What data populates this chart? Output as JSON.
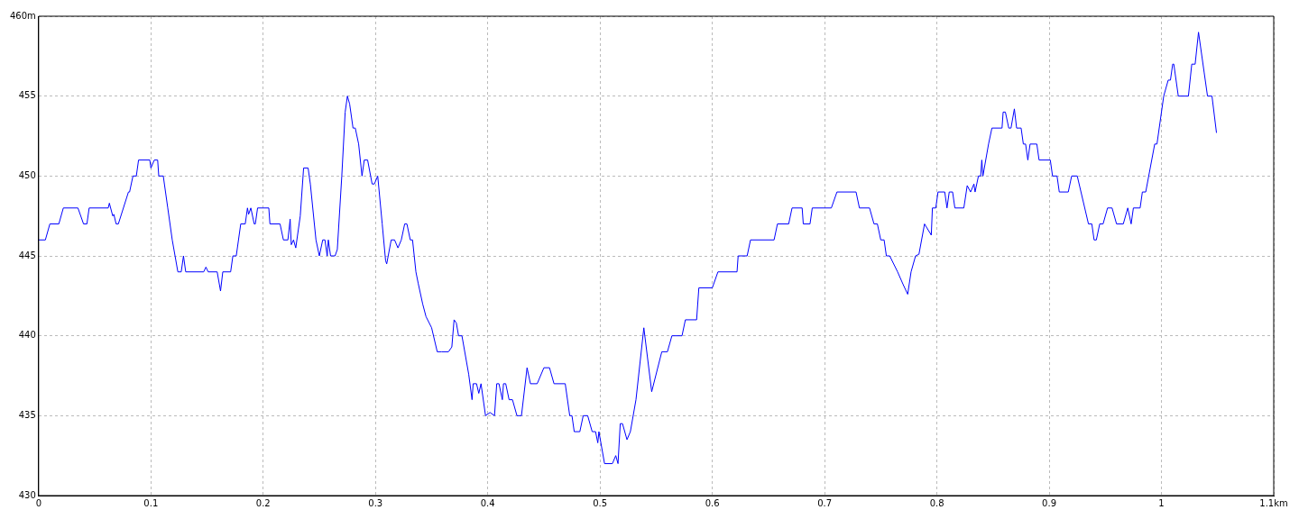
{
  "chart_data": {
    "type": "line",
    "color": "#0000ff",
    "marker": "none",
    "line_style": "solid",
    "grid": true,
    "xlim": [
      0,
      1.1
    ],
    "ylim": [
      430,
      460
    ],
    "xticks": [
      0,
      0.1,
      0.2,
      0.3,
      0.4,
      0.5,
      0.6,
      0.7,
      0.8,
      0.9,
      1,
      {
        "value": 1.1,
        "label": "1.1km"
      }
    ],
    "yticks": [
      430,
      435,
      440,
      445,
      450,
      455,
      {
        "value": 460,
        "label": "460m"
      }
    ],
    "x": [
      0,
      0.006,
      0.01,
      0.018,
      0.022,
      0.035,
      0.04,
      0.043,
      0.045,
      0.062,
      0.063,
      0.066,
      0.067,
      0.069,
      0.071,
      0.08,
      0.081,
      0.084,
      0.087,
      0.089,
      0.099,
      0.1,
      0.103,
      0.106,
      0.107,
      0.111,
      0.115,
      0.119,
      0.124,
      0.127,
      0.129,
      0.131,
      0.147,
      0.149,
      0.151,
      0.159,
      0.162,
      0.164,
      0.171,
      0.173,
      0.176,
      0.18,
      0.184,
      0.186,
      0.187,
      0.189,
      0.192,
      0.193,
      0.195,
      0.205,
      0.206,
      0.215,
      0.218,
      0.222,
      0.224,
      0.225,
      0.227,
      0.229,
      0.233,
      0.236,
      0.24,
      0.242,
      0.247,
      0.25,
      0.253,
      0.255,
      0.257,
      0.258,
      0.26,
      0.264,
      0.266,
      0.27,
      0.273,
      0.275,
      0.277,
      0.28,
      0.282,
      0.285,
      0.288,
      0.29,
      0.293,
      0.297,
      0.299,
      0.302,
      0.306,
      0.309,
      0.31,
      0.314,
      0.317,
      0.32,
      0.323,
      0.326,
      0.328,
      0.331,
      0.333,
      0.336,
      0.338,
      0.342,
      0.345,
      0.35,
      0.355,
      0.359,
      0.365,
      0.368,
      0.37,
      0.372,
      0.374,
      0.377,
      0.383,
      0.386,
      0.387,
      0.39,
      0.392,
      0.394,
      0.398,
      0.402,
      0.406,
      0.408,
      0.41,
      0.413,
      0.414,
      0.416,
      0.419,
      0.422,
      0.426,
      0.43,
      0.435,
      0.438,
      0.444,
      0.45,
      0.455,
      0.459,
      0.469,
      0.473,
      0.475,
      0.477,
      0.482,
      0.485,
      0.489,
      0.493,
      0.496,
      0.498,
      0.499,
      0.504,
      0.511,
      0.514,
      0.516,
      0.518,
      0.52,
      0.524,
      0.527,
      0.532,
      0.539,
      0.546,
      0.555,
      0.56,
      0.564,
      0.573,
      0.576,
      0.586,
      0.588,
      0.6,
      0.605,
      0.622,
      0.623,
      0.631,
      0.634,
      0.655,
      0.658,
      0.668,
      0.671,
      0.68,
      0.681,
      0.687,
      0.689,
      0.706,
      0.711,
      0.728,
      0.731,
      0.74,
      0.744,
      0.747,
      0.75,
      0.753,
      0.755,
      0.758,
      0.765,
      0.77,
      0.774,
      0.777,
      0.781,
      0.784,
      0.789,
      0.795,
      0.796,
      0.799,
      0.801,
      0.807,
      0.809,
      0.811,
      0.814,
      0.816,
      0.824,
      0.827,
      0.83,
      0.833,
      0.834,
      0.837,
      0.839,
      0.84,
      0.841,
      0.846,
      0.849,
      0.858,
      0.859,
      0.861,
      0.864,
      0.866,
      0.869,
      0.871,
      0.875,
      0.877,
      0.879,
      0.881,
      0.883,
      0.889,
      0.891,
      0.901,
      0.903,
      0.907,
      0.909,
      0.917,
      0.92,
      0.925,
      0.935,
      0.938,
      0.94,
      0.942,
      0.945,
      0.948,
      0.952,
      0.956,
      0.96,
      0.966,
      0.97,
      0.973,
      0.975,
      0.981,
      0.983,
      0.986,
      0.994,
      0.996,
      1.002,
      1.006,
      1.008,
      1.01,
      1.011,
      1.015,
      1.024,
      1.027,
      1.03,
      1.033,
      1.038,
      1.041,
      1.045,
      1.049
    ],
    "values": [
      446,
      446,
      447,
      447,
      448,
      448,
      447,
      447,
      448,
      448,
      448.3,
      447.5,
      447.6,
      447,
      447,
      449,
      449,
      450,
      450,
      451,
      451,
      450.5,
      451,
      451,
      450,
      450,
      448,
      446,
      444,
      444,
      445,
      444,
      444,
      444.3,
      444,
      444,
      442.8,
      444,
      444,
      445,
      445,
      447,
      447,
      448,
      447.6,
      448,
      447,
      447,
      448,
      448,
      447,
      447,
      446,
      446,
      447.3,
      445.7,
      446,
      445.5,
      447.5,
      450.5,
      450.5,
      449.5,
      446,
      445,
      446,
      446,
      445,
      446,
      445,
      445,
      445.4,
      450,
      454,
      455,
      454.5,
      453,
      453,
      452,
      450,
      451,
      451,
      449.5,
      449.5,
      450,
      447,
      444.7,
      444.5,
      446,
      446,
      445.5,
      446,
      447,
      447,
      446,
      446,
      444,
      443.3,
      442,
      441.2,
      440.5,
      439,
      439,
      439,
      439.3,
      441,
      440.8,
      440,
      440,
      437.6,
      436,
      437,
      437,
      436.4,
      437,
      435,
      435.2,
      435,
      437,
      437,
      436,
      437,
      437,
      436,
      436,
      435,
      435,
      438,
      437,
      437,
      438,
      438,
      437,
      437,
      435,
      435,
      434,
      434,
      435,
      435,
      434,
      434,
      433.3,
      434,
      432,
      432,
      432.5,
      432,
      434.5,
      434.5,
      433.5,
      434,
      436,
      440.5,
      436.5,
      439,
      439,
      440,
      440,
      441,
      441,
      443,
      443,
      444,
      444,
      445,
      445,
      446,
      446,
      447,
      447,
      448,
      448,
      447,
      447,
      448,
      448,
      449,
      449,
      448,
      448,
      447,
      447,
      446,
      446,
      445,
      445,
      444,
      443.2,
      442.6,
      444,
      445,
      445.1,
      447,
      446.3,
      448,
      448,
      449,
      449,
      448,
      449,
      449,
      448,
      448,
      449.4,
      449,
      449.5,
      449,
      450,
      450,
      451,
      450,
      452,
      453,
      453,
      454,
      454,
      453,
      453,
      454.2,
      453,
      453,
      452,
      452,
      451,
      452,
      452,
      451,
      451,
      450,
      450,
      449,
      449,
      450,
      450,
      447,
      447,
      446,
      446,
      447,
      447,
      448,
      448,
      447,
      447,
      448,
      447,
      448,
      448,
      449,
      449,
      452,
      452,
      455,
      456,
      456,
      457,
      457,
      455,
      455,
      457,
      457,
      459,
      456.5,
      455,
      455,
      452.7
    ]
  }
}
